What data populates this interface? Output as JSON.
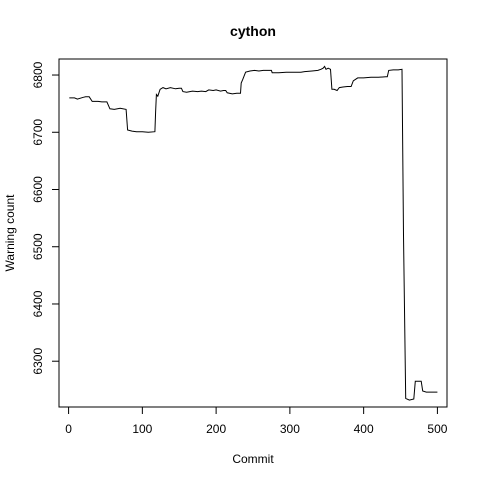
{
  "chart_data": {
    "type": "line",
    "title": "cython",
    "xlabel": "Commit",
    "ylabel": "Warning count",
    "xlim": [
      -13,
      513
    ],
    "ylim": [
      6220,
      6828
    ],
    "xticks": [
      0,
      100,
      200,
      300,
      400,
      500
    ],
    "yticks": [
      6300,
      6400,
      6500,
      6600,
      6700,
      6800
    ],
    "grid": false,
    "legend": "none",
    "series": [
      {
        "color": "#000000",
        "points": [
          [
            1,
            6760
          ],
          [
            8,
            6760
          ],
          [
            12,
            6758
          ],
          [
            20,
            6761
          ],
          [
            23,
            6762
          ],
          [
            28,
            6762
          ],
          [
            32,
            6754
          ],
          [
            40,
            6754
          ],
          [
            45,
            6753
          ],
          [
            52,
            6753
          ],
          [
            56,
            6741
          ],
          [
            62,
            6740
          ],
          [
            70,
            6742
          ],
          [
            78,
            6740
          ],
          [
            80,
            6704
          ],
          [
            86,
            6702
          ],
          [
            92,
            6701
          ],
          [
            100,
            6701
          ],
          [
            108,
            6700
          ],
          [
            117,
            6701
          ],
          [
            118,
            6735
          ],
          [
            119,
            6766
          ],
          [
            121,
            6763
          ],
          [
            124,
            6775
          ],
          [
            128,
            6778
          ],
          [
            132,
            6776
          ],
          [
            138,
            6778
          ],
          [
            145,
            6776
          ],
          [
            150,
            6777
          ],
          [
            153,
            6777
          ],
          [
            155,
            6771
          ],
          [
            160,
            6770
          ],
          [
            168,
            6772
          ],
          [
            175,
            6771
          ],
          [
            180,
            6772
          ],
          [
            186,
            6771
          ],
          [
            190,
            6774
          ],
          [
            196,
            6773
          ],
          [
            200,
            6774
          ],
          [
            206,
            6772
          ],
          [
            210,
            6773
          ],
          [
            213,
            6773
          ],
          [
            215,
            6769
          ],
          [
            222,
            6767
          ],
          [
            228,
            6768
          ],
          [
            233,
            6768
          ],
          [
            234,
            6786
          ],
          [
            236,
            6792
          ],
          [
            240,
            6805
          ],
          [
            246,
            6807
          ],
          [
            252,
            6808
          ],
          [
            258,
            6807
          ],
          [
            264,
            6808
          ],
          [
            270,
            6808
          ],
          [
            275,
            6808
          ],
          [
            276,
            6804
          ],
          [
            285,
            6804
          ],
          [
            295,
            6805
          ],
          [
            305,
            6805
          ],
          [
            315,
            6805
          ],
          [
            320,
            6806
          ],
          [
            330,
            6807
          ],
          [
            338,
            6808
          ],
          [
            342,
            6810
          ],
          [
            345,
            6812
          ],
          [
            347,
            6815
          ],
          [
            349,
            6810
          ],
          [
            352,
            6812
          ],
          [
            355,
            6810
          ],
          [
            357,
            6775
          ],
          [
            360,
            6775
          ],
          [
            364,
            6773
          ],
          [
            367,
            6778
          ],
          [
            372,
            6779
          ],
          [
            378,
            6780
          ],
          [
            383,
            6780
          ],
          [
            386,
            6790
          ],
          [
            392,
            6795
          ],
          [
            400,
            6795
          ],
          [
            410,
            6796
          ],
          [
            420,
            6796
          ],
          [
            430,
            6797
          ],
          [
            432,
            6797
          ],
          [
            434,
            6808
          ],
          [
            440,
            6809
          ],
          [
            447,
            6809
          ],
          [
            452,
            6810
          ],
          [
            454,
            6520
          ],
          [
            457,
            6235
          ],
          [
            462,
            6232
          ],
          [
            468,
            6234
          ],
          [
            470,
            6265
          ],
          [
            478,
            6265
          ],
          [
            480,
            6248
          ],
          [
            485,
            6246
          ],
          [
            492,
            6246
          ],
          [
            500,
            6246
          ]
        ]
      }
    ]
  }
}
